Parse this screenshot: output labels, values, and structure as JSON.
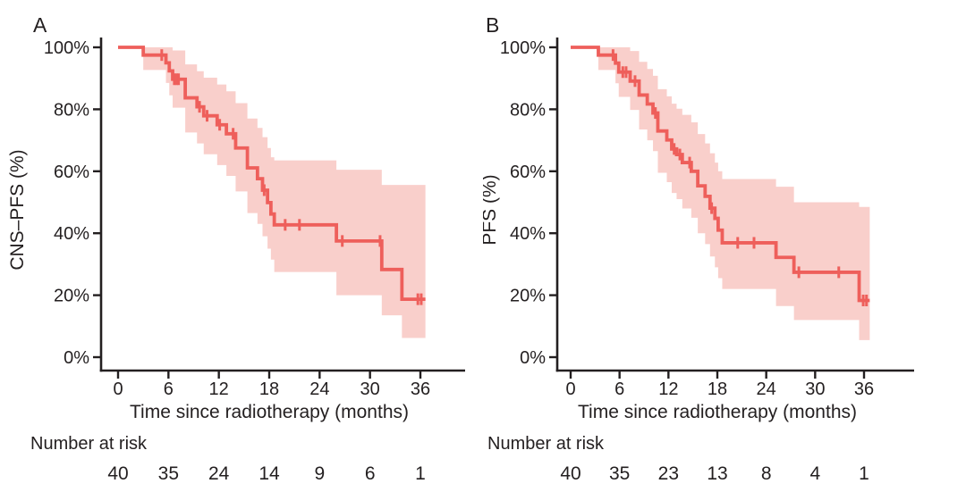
{
  "figure_title": "",
  "chart_data": [
    {
      "type": "line",
      "subtype": "kaplan-meier-step-with-confidence-band",
      "panel_label": "A",
      "ylabel": "CNS–PFS (%)",
      "xlabel": "Time since radiotherapy (months)",
      "xlim": [
        0,
        41
      ],
      "ylim": [
        0,
        100
      ],
      "grid": "off",
      "legend": "none",
      "xticks": [
        0,
        6,
        12,
        18,
        24,
        30,
        36
      ],
      "ytick_labels": [
        "100%",
        "80%",
        "60%",
        "40%",
        "20%",
        "0%"
      ],
      "ytick_values": [
        100,
        80,
        60,
        40,
        20,
        0
      ],
      "line_color": "#ee5f5b",
      "band_color": "#f9cfcb",
      "steps": [
        {
          "t0": 0,
          "t1": 3.0,
          "s": 100,
          "lo": 100,
          "hi": 100
        },
        {
          "t0": 3.0,
          "t1": 5.7,
          "s": 97.5,
          "lo": 92.7,
          "hi": 100
        },
        {
          "t0": 5.7,
          "t1": 6.1,
          "s": 95.0,
          "lo": 88.5,
          "hi": 100
        },
        {
          "t0": 6.1,
          "t1": 6.5,
          "s": 92.4,
          "lo": 84.5,
          "hi": 100
        },
        {
          "t0": 6.5,
          "t1": 8.0,
          "s": 89.7,
          "lo": 80.5,
          "hi": 99.0
        },
        {
          "t0": 8.0,
          "t1": 9.4,
          "s": 83.7,
          "lo": 72.5,
          "hi": 94.5
        },
        {
          "t0": 9.4,
          "t1": 10.2,
          "s": 80.8,
          "lo": 69.0,
          "hi": 92.3
        },
        {
          "t0": 10.2,
          "t1": 11.8,
          "s": 77.9,
          "lo": 65.5,
          "hi": 90.2
        },
        {
          "t0": 11.8,
          "t1": 12.9,
          "s": 75.0,
          "lo": 62.0,
          "hi": 88.0
        },
        {
          "t0": 12.9,
          "t1": 14.0,
          "s": 72.1,
          "lo": 58.5,
          "hi": 85.8
        },
        {
          "t0": 14.0,
          "t1": 15.4,
          "s": 67.5,
          "lo": 53.5,
          "hi": 82.0
        },
        {
          "t0": 15.4,
          "t1": 16.6,
          "s": 61.1,
          "lo": 46.5,
          "hi": 77.0
        },
        {
          "t0": 16.6,
          "t1": 17.2,
          "s": 57.6,
          "lo": 43.0,
          "hi": 74.0
        },
        {
          "t0": 17.2,
          "t1": 17.8,
          "s": 53.9,
          "lo": 39.0,
          "hi": 71.0
        },
        {
          "t0": 17.8,
          "t1": 18.2,
          "s": 49.9,
          "lo": 35.0,
          "hi": 67.5
        },
        {
          "t0": 18.2,
          "t1": 18.6,
          "s": 46.2,
          "lo": 31.5,
          "hi": 64.5
        },
        {
          "t0": 18.6,
          "t1": 26.0,
          "s": 42.7,
          "lo": 27.5,
          "hi": 63.5
        },
        {
          "t0": 26.0,
          "t1": 31.4,
          "s": 37.5,
          "lo": 20.0,
          "hi": 60.5
        },
        {
          "t0": 31.4,
          "t1": 33.8,
          "s": 28.3,
          "lo": 13.5,
          "hi": 55.6
        },
        {
          "t0": 33.8,
          "t1": 36.6,
          "s": 18.7,
          "lo": 6.2,
          "hi": 55.6
        }
      ],
      "censor_times": [
        5.2,
        6.7,
        6.95,
        7.2,
        9.7,
        10.6,
        12.1,
        13.7,
        17.4,
        19.9,
        21.6,
        26.7,
        31.2,
        35.7,
        36.1
      ],
      "number_at_risk": {
        "label": "Number at risk",
        "times": [
          0,
          6,
          12,
          18,
          24,
          30,
          36
        ],
        "counts": [
          40,
          35,
          24,
          14,
          9,
          6,
          1
        ]
      }
    },
    {
      "type": "line",
      "subtype": "kaplan-meier-step-with-confidence-band",
      "panel_label": "B",
      "ylabel": "PFS (%)",
      "xlabel": "Time since radiotherapy (months)",
      "xlim": [
        0,
        41
      ],
      "ylim": [
        0,
        100
      ],
      "grid": "off",
      "legend": "none",
      "xticks": [
        0,
        6,
        12,
        18,
        24,
        30,
        36
      ],
      "ytick_labels": [
        "100%",
        "80%",
        "60%",
        "40%",
        "20%",
        "0%"
      ],
      "ytick_values": [
        100,
        80,
        60,
        40,
        20,
        0
      ],
      "line_color": "#ee5f5b",
      "band_color": "#f9cfcb",
      "steps": [
        {
          "t0": 0,
          "t1": 3.4,
          "s": 100,
          "lo": 100,
          "hi": 100
        },
        {
          "t0": 3.4,
          "t1": 5.5,
          "s": 97.5,
          "lo": 92.7,
          "hi": 100
        },
        {
          "t0": 5.5,
          "t1": 5.9,
          "s": 94.9,
          "lo": 88.4,
          "hi": 100
        },
        {
          "t0": 5.9,
          "t1": 7.3,
          "s": 92.0,
          "lo": 84.0,
          "hi": 100
        },
        {
          "t0": 7.3,
          "t1": 8.4,
          "s": 89.1,
          "lo": 79.8,
          "hi": 98.8
        },
        {
          "t0": 8.4,
          "t1": 9.4,
          "s": 84.6,
          "lo": 73.5,
          "hi": 95.3
        },
        {
          "t0": 9.4,
          "t1": 10.1,
          "s": 81.7,
          "lo": 70.0,
          "hi": 93.0
        },
        {
          "t0": 10.1,
          "t1": 10.7,
          "s": 78.8,
          "lo": 66.5,
          "hi": 90.8
        },
        {
          "t0": 10.7,
          "t1": 11.8,
          "s": 73.0,
          "lo": 59.5,
          "hi": 86.5
        },
        {
          "t0": 11.8,
          "t1": 12.4,
          "s": 70.1,
          "lo": 56.5,
          "hi": 84.2
        },
        {
          "t0": 12.4,
          "t1": 13.0,
          "s": 67.2,
          "lo": 53.0,
          "hi": 81.8
        },
        {
          "t0": 13.0,
          "t1": 13.7,
          "s": 65.4,
          "lo": 51.0,
          "hi": 80.2
        },
        {
          "t0": 13.7,
          "t1": 14.8,
          "s": 62.8,
          "lo": 48.0,
          "hi": 78.2
        },
        {
          "t0": 14.8,
          "t1": 15.6,
          "s": 60.0,
          "lo": 45.0,
          "hi": 75.8
        },
        {
          "t0": 15.6,
          "t1": 16.5,
          "s": 55.3,
          "lo": 40.0,
          "hi": 72.0
        },
        {
          "t0": 16.5,
          "t1": 17.1,
          "s": 51.9,
          "lo": 36.5,
          "hi": 69.0
        },
        {
          "t0": 17.1,
          "t1": 17.7,
          "s": 48.1,
          "lo": 32.5,
          "hi": 65.8
        },
        {
          "t0": 17.7,
          "t1": 18.1,
          "s": 44.8,
          "lo": 29.0,
          "hi": 62.8
        },
        {
          "t0": 18.1,
          "t1": 18.6,
          "s": 41.0,
          "lo": 25.5,
          "hi": 60.0
        },
        {
          "t0": 18.6,
          "t1": 25.2,
          "s": 36.9,
          "lo": 22.0,
          "hi": 57.5
        },
        {
          "t0": 25.2,
          "t1": 27.4,
          "s": 32.2,
          "lo": 16.5,
          "hi": 55.0
        },
        {
          "t0": 27.4,
          "t1": 35.4,
          "s": 27.4,
          "lo": 12.0,
          "hi": 50.0
        },
        {
          "t0": 35.4,
          "t1": 36.7,
          "s": 18.3,
          "lo": 5.5,
          "hi": 48.5
        }
      ],
      "censor_times": [
        5.2,
        6.4,
        6.8,
        7.9,
        10.4,
        12.7,
        13.4,
        14.6,
        17.3,
        20.5,
        22.5,
        28.0,
        32.9,
        35.9,
        36.3
      ],
      "number_at_risk": {
        "label": "Number at risk",
        "times": [
          0,
          6,
          12,
          18,
          24,
          30,
          36
        ],
        "counts": [
          40,
          35,
          23,
          13,
          8,
          4,
          1
        ]
      }
    }
  ]
}
